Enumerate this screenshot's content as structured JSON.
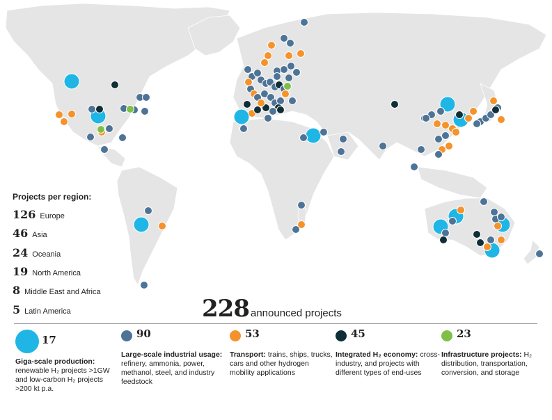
{
  "colors": {
    "land": "#e5e5e5",
    "border": "#ffffff",
    "giga": "#1fb6e6",
    "industrial": "#4d7496",
    "transport": "#f5922b",
    "integrated": "#0f2e36",
    "infrastructure": "#7fbf47"
  },
  "regions": {
    "title": "Projects per region:",
    "items": [
      {
        "count": "126",
        "name": "Europe"
      },
      {
        "count": "46",
        "name": "Asia"
      },
      {
        "count": "24",
        "name": "Oceania"
      },
      {
        "count": "19",
        "name": "North America"
      },
      {
        "count": "8",
        "name": "Middle East and Africa"
      },
      {
        "count": "5",
        "name": "Latin America"
      }
    ]
  },
  "total": {
    "count": "228",
    "label": "announced projects"
  },
  "legend": [
    {
      "count": "17",
      "title": "Giga-scale production:",
      "text": "renewable H₂ projects >1GW and low-carbon H₂ projects >200 kt p.a.",
      "color_key": "giga",
      "icon": "large-circle-icon"
    },
    {
      "count": "90",
      "title": "Large-scale industrial usage:",
      "text": "refinery, ammonia, power, methanol, steel, and industry feedstock",
      "color_key": "industrial",
      "icon": "circle-icon"
    },
    {
      "count": "53",
      "title": "Transport:",
      "text": "trains, ships, trucks, cars and other hydrogen mobility applications",
      "color_key": "transport",
      "icon": "circle-icon"
    },
    {
      "count": "45",
      "title": "Integrated H₂ economy:",
      "text": "cross-industry, and projects with different types of end-uses",
      "color_key": "integrated",
      "icon": "circle-icon"
    },
    {
      "count": "23",
      "title": "Infrastructure projects:",
      "text": "H₂ distribution, transportation, conversion, and storage",
      "color_key": "infrastructure",
      "icon": "circle-icon"
    }
  ]
}
